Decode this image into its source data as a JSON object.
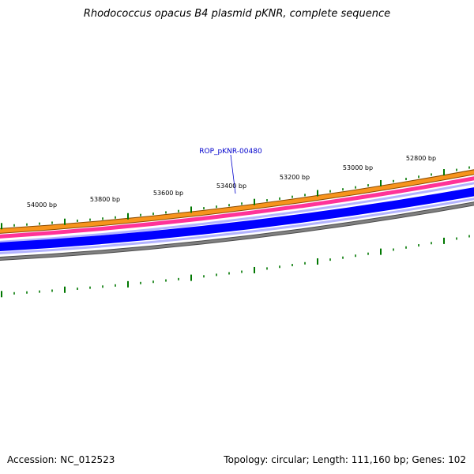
{
  "title": "Rhodococcus opacus B4 plasmid pKNR, complete sequence",
  "footer": {
    "accession": "Accession: NC_012523",
    "summary": "Topology: circular; Length: 111,160 bp; Genes: 102"
  },
  "gene_label": "ROP_pKNR-00480",
  "ruler_labels": [
    "54000 bp",
    "53800 bp",
    "53600 bp",
    "53400 bp",
    "53200 bp",
    "53000 bp",
    "52800 bp"
  ],
  "colors": {
    "orange": "#f7941d",
    "pink": "#ff3399",
    "blue": "#0000ff",
    "lavender": "#b3b3ff",
    "gray": "#808080",
    "tick": "#007700",
    "label": "#0000cc"
  }
}
